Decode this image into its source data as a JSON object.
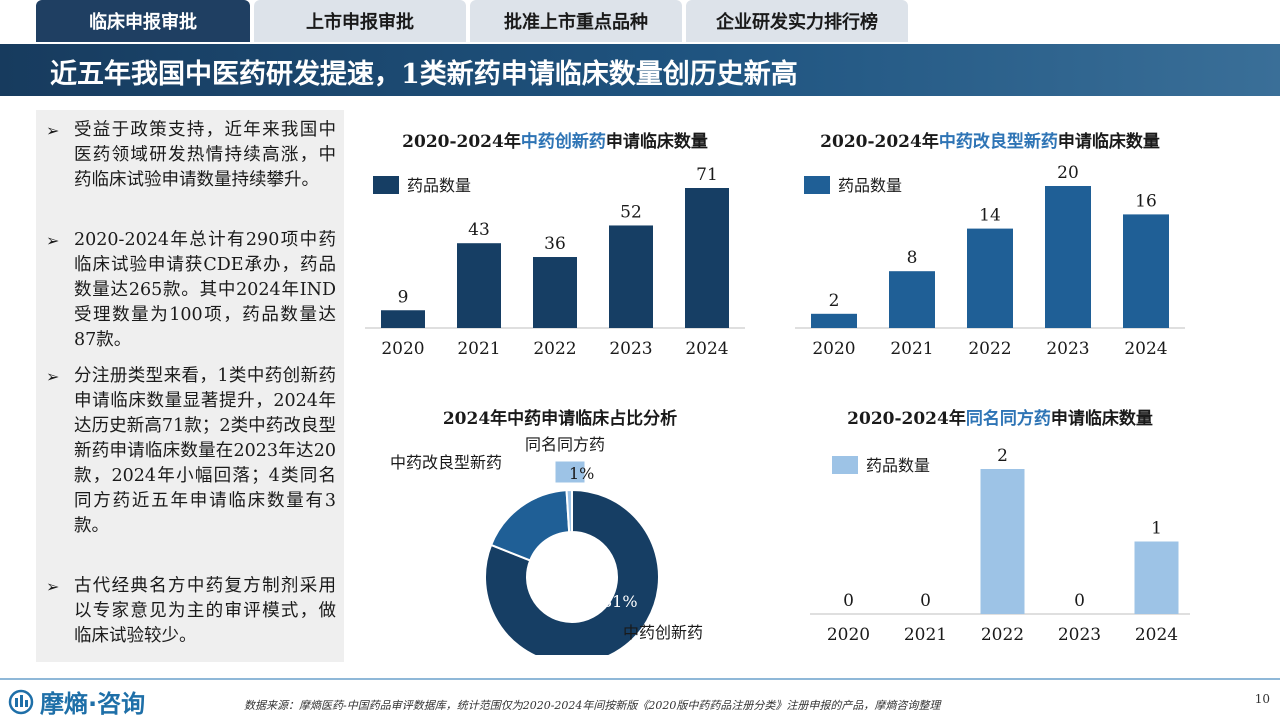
{
  "tabs": [
    {
      "label": "临床申报审批",
      "active": true
    },
    {
      "label": "上市申报审批",
      "active": false
    },
    {
      "label": "批准上市重点品种",
      "active": false
    },
    {
      "label": "企业研发实力排行榜",
      "active": false
    }
  ],
  "page_title": "近五年我国中医药研发提速，1类新药申请临床数量创历史新高",
  "bullets": [
    "受益于政策支持，近年来我国中医药领域研发热情持续高涨，中药临床试验申请数量持续攀升。",
    "2020-2024年总计有290项中药临床试验申请获CDE承办，药品数量达265款。其中2024年IND受理数量为100项，药品数量达87款。",
    "分注册类型来看，1类中药创新药申请临床数量显著提升，2024年达历史新高71款；2类中药改良型新药申请临床数量在2023年达20款，2024年小幅回落；4类同名同方药近五年申请临床数量有3款。",
    "古代经典名方中药复方制剂采用以专家意见为主的审评模式，做临床试验较少。"
  ],
  "chart_titles": {
    "c1": {
      "pre": "2020-2024年",
      "hl": "中药创新药",
      "post": "申请临床数量"
    },
    "c2": {
      "pre": "2020-2024年",
      "hl": "中药改良型新药",
      "post": "申请临床数量"
    },
    "c3": {
      "pre": "2024年中药申请临床占比分析",
      "hl": "",
      "post": ""
    },
    "c4": {
      "pre": "2020-2024年",
      "hl": "同名同方药",
      "post": "申请临床数量"
    }
  },
  "chart_data": [
    {
      "type": "bar",
      "title": "2020-2024年中药创新药申请临床数量",
      "categories": [
        "2020",
        "2021",
        "2022",
        "2023",
        "2024"
      ],
      "series": [
        {
          "name": "药品数量",
          "values": [
            9,
            43,
            36,
            52,
            71
          ],
          "color": "#163e64"
        }
      ],
      "ylim": [
        0,
        71
      ],
      "legend": "top-left"
    },
    {
      "type": "bar",
      "title": "2020-2024年中药改良型新药申请临床数量",
      "categories": [
        "2020",
        "2021",
        "2022",
        "2023",
        "2024"
      ],
      "series": [
        {
          "name": "药品数量",
          "values": [
            2,
            8,
            14,
            20,
            16
          ],
          "color": "#1f5f96"
        }
      ],
      "ylim": [
        0,
        20
      ],
      "legend": "top-left"
    },
    {
      "type": "pie",
      "title": "2024年中药申请临床占比分析",
      "slices": [
        {
          "name": "中药创新药",
          "value": 81,
          "label": "81%",
          "color": "#163e64"
        },
        {
          "name": "中药改良型新药",
          "value": 18,
          "label": "18%",
          "color": "#1f5f96"
        },
        {
          "name": "同名同方药",
          "value": 1,
          "label": "1%",
          "color": "#9dc3e6"
        }
      ],
      "donut": true
    },
    {
      "type": "bar",
      "title": "2020-2024年同名同方药申请临床数量",
      "categories": [
        "2020",
        "2021",
        "2022",
        "2023",
        "2024"
      ],
      "series": [
        {
          "name": "药品数量",
          "values": [
            0,
            0,
            2,
            0,
            1
          ],
          "color": "#9dc3e6"
        }
      ],
      "ylim": [
        0,
        2
      ],
      "legend": "top-left"
    }
  ],
  "footer": {
    "logo": "摩熵·咨询",
    "source": "数据来源：摩熵医药-中国药品审评数据库，统计范围仅为2020-2024年间按新版《2020版中药药品注册分类》注册申报的产品，摩熵咨询整理",
    "page_number": "10"
  },
  "colors": {
    "primary": "#163e64",
    "secondary": "#1f5f96",
    "light": "#9dc3e6",
    "highlight": "#2e74b5"
  }
}
